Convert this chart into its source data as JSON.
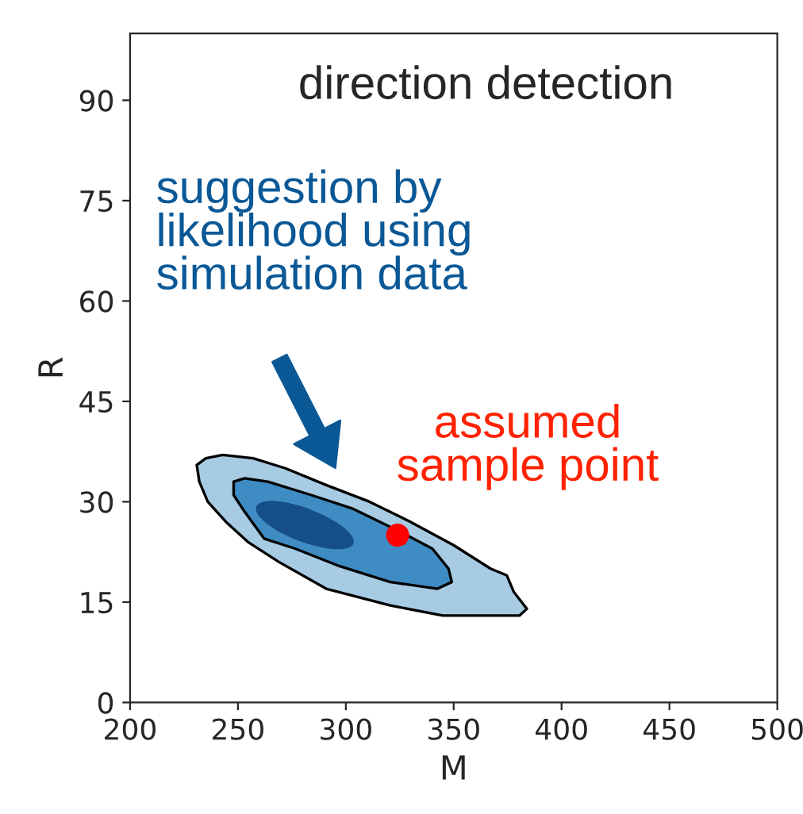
{
  "chart_data": {
    "type": "scatter",
    "title": "direction detection",
    "xlabel": "M",
    "ylabel": "R",
    "xlim": [
      200,
      500
    ],
    "xticks": [
      200,
      250,
      300,
      350,
      400,
      450,
      500
    ],
    "ylim": [
      0,
      100
    ],
    "yticks": [
      0,
      15,
      30,
      45,
      60,
      75,
      90
    ],
    "series": [
      {
        "color": "#ff0000",
        "x": [
          324
        ],
        "values": [
          25
        ]
      }
    ],
    "annotations": [
      "suggestion by\nlikelihood using\nsimulation data",
      {
        "text": "assumed\nsample point",
        "x": 324,
        "y": 25
      }
    ]
  }
}
